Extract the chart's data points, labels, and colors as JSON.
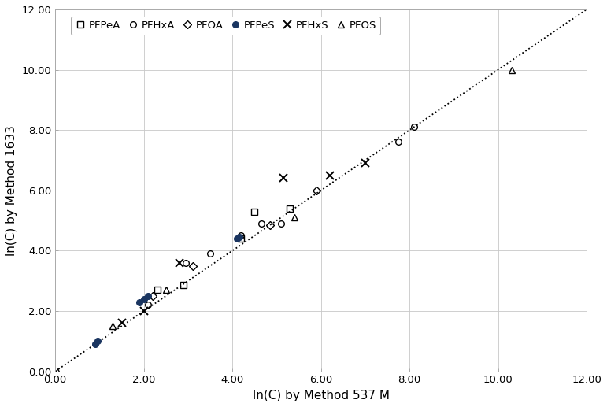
{
  "title": "",
  "xlabel": "ln(C) by Method 537 M",
  "ylabel": "ln(C) by Method 1633",
  "xlim": [
    0,
    12
  ],
  "ylim": [
    0,
    12
  ],
  "xticks": [
    0.0,
    2.0,
    4.0,
    6.0,
    8.0,
    10.0,
    12.0
  ],
  "yticks": [
    0.0,
    2.0,
    4.0,
    6.0,
    8.0,
    10.0,
    12.0
  ],
  "xtick_labels": [
    "0.00",
    "2.00",
    "4.00",
    "6.00",
    "8.00",
    "10.00",
    "12.00"
  ],
  "ytick_labels": [
    "0.00",
    "2.00",
    "4.00",
    "6.00",
    "8.00",
    "10.00",
    "12.00"
  ],
  "grid": true,
  "background_color": "#ffffff",
  "series": {
    "PFPeA": {
      "x": [
        2.3,
        2.9,
        4.2,
        4.5,
        5.3
      ],
      "y": [
        2.7,
        2.85,
        4.4,
        5.3,
        5.4
      ]
    },
    "PFHxA": {
      "x": [
        2.1,
        2.95,
        3.5,
        4.2,
        4.65,
        5.1,
        7.75,
        8.1
      ],
      "y": [
        2.2,
        3.6,
        3.9,
        4.5,
        4.9,
        4.9,
        7.6,
        8.1
      ]
    },
    "PFOA": {
      "x": [
        2.2,
        3.1,
        4.85,
        5.9
      ],
      "y": [
        2.5,
        3.5,
        4.85,
        6.0
      ]
    },
    "PFPeS": {
      "x": [
        0.9,
        0.95,
        1.9,
        2.0,
        2.1,
        4.1,
        4.15
      ],
      "y": [
        0.9,
        1.0,
        2.3,
        2.4,
        2.5,
        4.4,
        4.45
      ]
    },
    "PFHxS": {
      "x": [
        1.5,
        2.0,
        2.8,
        5.15,
        6.2,
        7.0
      ],
      "y": [
        1.6,
        2.0,
        3.6,
        6.4,
        6.5,
        6.9
      ]
    },
    "PFOS": {
      "x": [
        0.05,
        1.3,
        2.5,
        5.4,
        10.3
      ],
      "y": [
        0.0,
        1.5,
        2.7,
        5.1,
        10.0
      ]
    }
  },
  "ref_line": {
    "x": [
      0,
      12
    ],
    "y": [
      0,
      12
    ],
    "style": "dotted",
    "color": "#000000",
    "linewidth": 1.3
  },
  "legend_order": [
    "PFPeA",
    "PFHxA",
    "PFOA",
    "PFPeS",
    "PFHxS",
    "PFOS"
  ],
  "legend_fontsize": 9.5,
  "tick_fontsize": 9.5,
  "label_fontsize": 11,
  "pfpes_color": "#1a3560"
}
